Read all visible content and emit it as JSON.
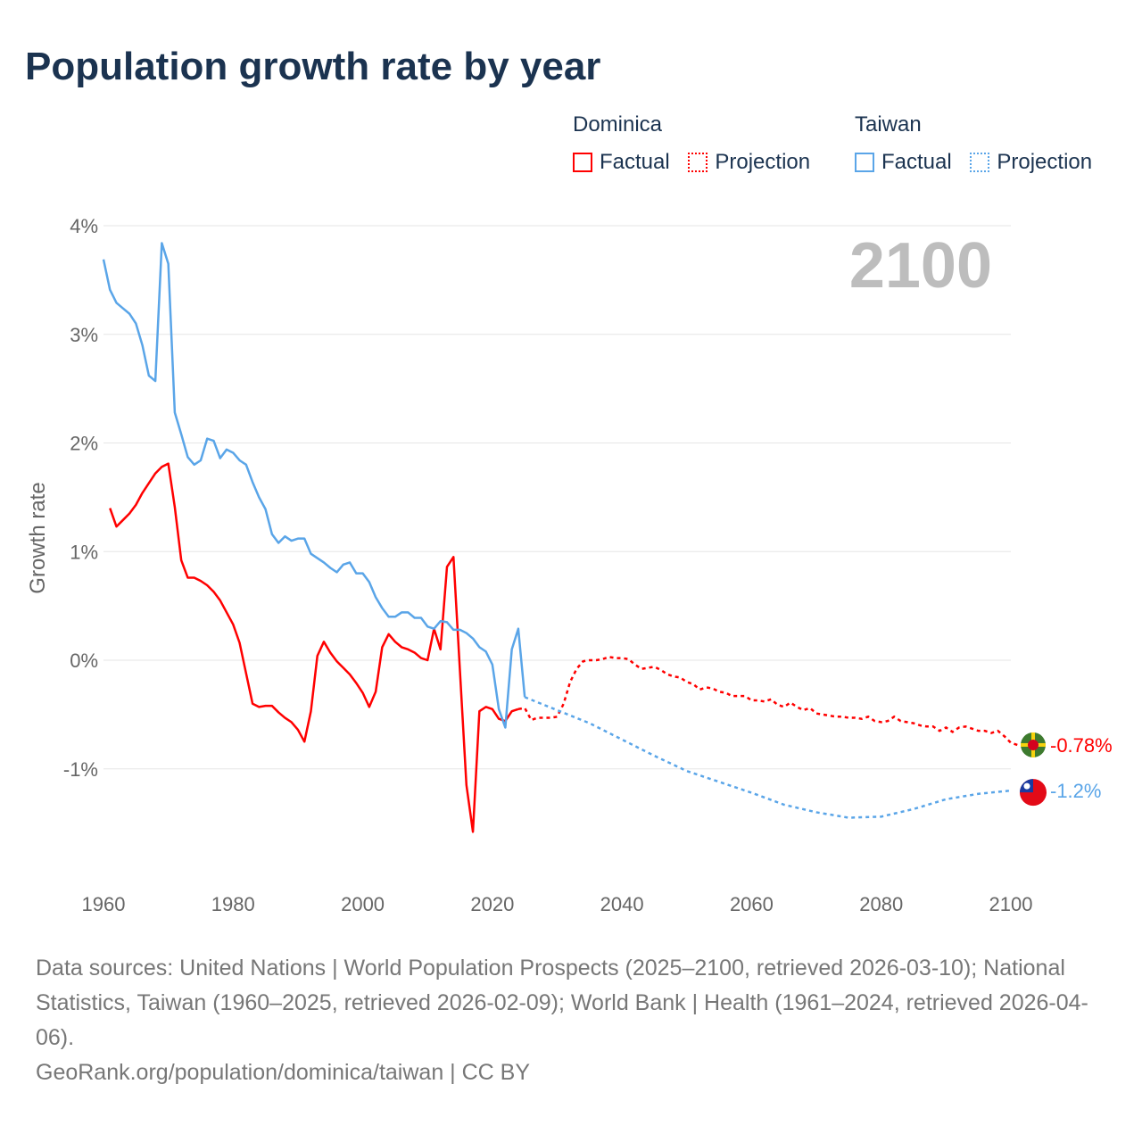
{
  "title": "Population growth rate by year",
  "legend": [
    {
      "country": "Dominica",
      "factual": "Factual",
      "projection": "Projection",
      "color": "#ff0000"
    },
    {
      "country": "Taiwan",
      "factual": "Factual",
      "projection": "Projection",
      "color": "#5aa5e8"
    }
  ],
  "year_label": "2100",
  "footer": {
    "sources": "Data sources: United Nations | World Population Prospects (2025–2100, retrieved 2026-03-10); National Statistics, Taiwan (1960–2025, retrieved 2026-02-09); World Bank | Health (1961–2024, retrieved 2026-04-06).",
    "credit": "GeoRank.org/population/dominica/taiwan | CC BY"
  },
  "chart_data": {
    "type": "line",
    "title": "Population growth rate by year",
    "xlabel": "",
    "ylabel": "Growth rate",
    "xlim": [
      1960,
      2100
    ],
    "ylim": [
      -2,
      4
    ],
    "x_ticks": [
      "1960",
      "1980",
      "2000",
      "2020",
      "2040",
      "2060",
      "2080",
      "2100"
    ],
    "y_ticks": [
      {
        "v": 4,
        "label": "4%"
      },
      {
        "v": 3,
        "label": "3%"
      },
      {
        "v": 2,
        "label": "2%"
      },
      {
        "v": 1,
        "label": "1%"
      },
      {
        "v": 0,
        "label": "0%"
      },
      {
        "v": -1,
        "label": "-1%"
      }
    ],
    "grid": true,
    "series": [
      {
        "name": "Dominica",
        "color": "#ff0000",
        "end_label": "-0.78%",
        "factual": {
          "start": 1961,
          "values": [
            1.4,
            1.23,
            1.29,
            1.35,
            1.43,
            1.54,
            1.63,
            1.72,
            1.78,
            1.81,
            1.41,
            0.92,
            0.76,
            0.76,
            0.73,
            0.69,
            0.63,
            0.55,
            0.44,
            0.33,
            0.16,
            -0.12,
            -0.4,
            -0.43,
            -0.42,
            -0.42,
            -0.48,
            -0.53,
            -0.57,
            -0.64,
            -0.75,
            -0.47,
            0.04,
            0.17,
            0.07,
            -0.01,
            -0.07,
            -0.13,
            -0.21,
            -0.3,
            -0.43,
            -0.29,
            0.12,
            0.24,
            0.17,
            0.12,
            0.1,
            0.07,
            0.02,
            0.0,
            0.29,
            0.1,
            0.86,
            0.95,
            -0.1,
            -1.15,
            -1.58,
            -0.47,
            -0.43,
            -0.45,
            -0.54,
            -0.56,
            -0.47,
            -0.45
          ]
        },
        "projection": {
          "start": 2024,
          "values": [
            -0.45,
            -0.44,
            -0.55,
            -0.53,
            -0.53,
            -0.53,
            -0.52,
            -0.4,
            -0.2,
            -0.08,
            -0.01,
            0.0,
            0.0,
            0.01,
            0.03,
            0.02,
            0.02,
            0.01,
            -0.04,
            -0.08,
            -0.07,
            -0.06,
            -0.09,
            -0.13,
            -0.15,
            -0.16,
            -0.2,
            -0.22,
            -0.27,
            -0.25,
            -0.26,
            -0.29,
            -0.3,
            -0.33,
            -0.33,
            -0.33,
            -0.37,
            -0.37,
            -0.38,
            -0.36,
            -0.41,
            -0.43,
            -0.39,
            -0.43,
            -0.46,
            -0.44,
            -0.49,
            -0.5,
            -0.51,
            -0.52,
            -0.52,
            -0.53,
            -0.53,
            -0.54,
            -0.52,
            -0.56,
            -0.57,
            -0.56,
            -0.52,
            -0.56,
            -0.57,
            -0.58,
            -0.6,
            -0.61,
            -0.61,
            -0.65,
            -0.62,
            -0.66,
            -0.62,
            -0.61,
            -0.63,
            -0.65,
            -0.65,
            -0.67,
            -0.65,
            -0.7,
            -0.76,
            -0.78
          ]
        }
      },
      {
        "name": "Taiwan",
        "color": "#5aa5e8",
        "end_label": "-1.2%",
        "factual": {
          "start": 1960,
          "values": [
            3.69,
            3.41,
            3.29,
            3.24,
            3.19,
            3.1,
            2.9,
            2.62,
            2.57,
            3.84,
            3.65,
            2.28,
            2.08,
            1.87,
            1.8,
            1.84,
            2.04,
            2.02,
            1.86,
            1.94,
            1.91,
            1.84,
            1.8,
            1.64,
            1.5,
            1.39,
            1.16,
            1.08,
            1.14,
            1.1,
            1.12,
            1.12,
            0.98,
            0.94,
            0.9,
            0.85,
            0.81,
            0.88,
            0.9,
            0.8,
            0.8,
            0.72,
            0.58,
            0.48,
            0.4,
            0.4,
            0.44,
            0.44,
            0.39,
            0.39,
            0.31,
            0.29,
            0.36,
            0.35,
            0.28,
            0.28,
            0.25,
            0.2,
            0.12,
            0.08,
            -0.04,
            -0.45,
            -0.62,
            0.1,
            0.29,
            -0.34
          ]
        },
        "projection": {
          "start": 2025,
          "step": 5,
          "values": [
            -0.34,
            -0.46,
            -0.58,
            -0.73,
            -0.88,
            -1.02,
            -1.12,
            -1.22,
            -1.33,
            -1.4,
            -1.45,
            -1.44,
            -1.37,
            -1.28,
            -1.23,
            -1.2
          ]
        }
      }
    ]
  }
}
